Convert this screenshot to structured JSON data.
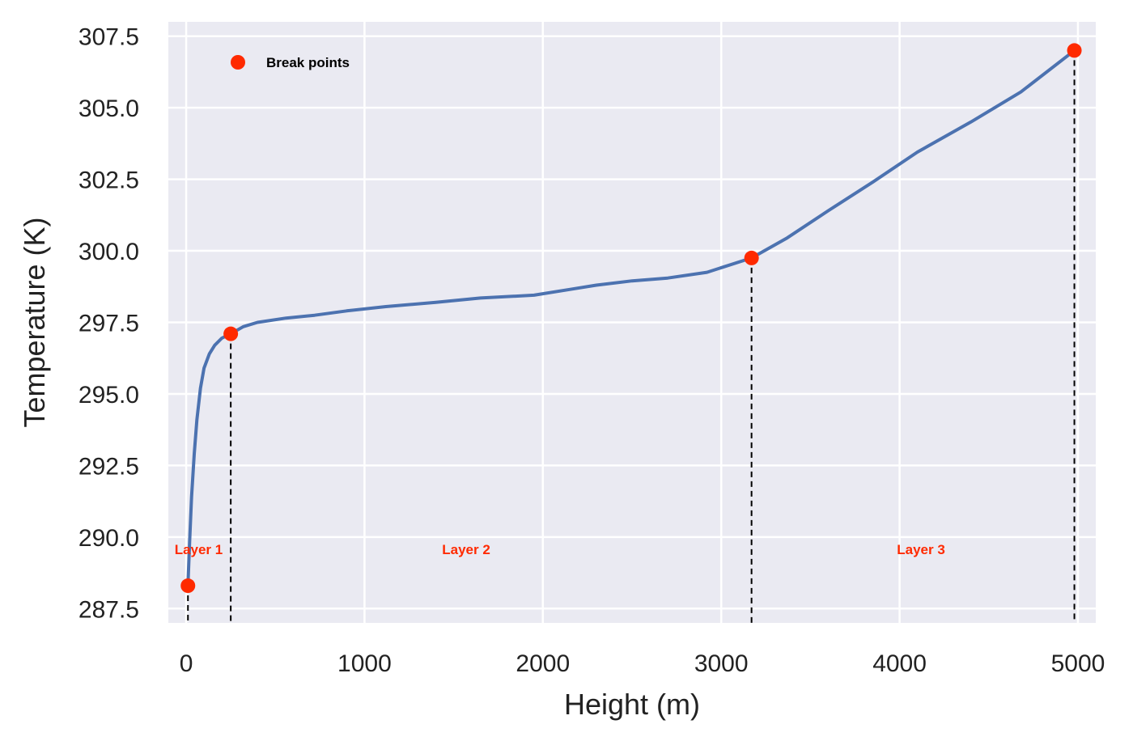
{
  "chart_data": {
    "type": "line",
    "title": "",
    "xlabel": "Height (m)",
    "ylabel": "Temperature (K)",
    "xlim": [
      -100,
      5100
    ],
    "ylim": [
      287.0,
      308.0
    ],
    "x_ticks": [
      0,
      1000,
      2000,
      3000,
      4000,
      5000
    ],
    "x_tick_labels": [
      "0",
      "1000",
      "2000",
      "3000",
      "4000",
      "5000"
    ],
    "y_ticks": [
      287.5,
      290.0,
      292.5,
      295.0,
      297.5,
      300.0,
      302.5,
      305.0,
      307.5
    ],
    "y_tick_labels": [
      "287.5",
      "290.0",
      "292.5",
      "295.0",
      "297.5",
      "300.0",
      "302.5",
      "305.0",
      "307.5"
    ],
    "grid": true,
    "background_color": "#eaeaf2",
    "grid_color": "#ffffff",
    "series": [
      {
        "color": "#4c72b0",
        "x": [
          10,
          20,
          30,
          45,
          60,
          80,
          100,
          130,
          160,
          200,
          250,
          320,
          400,
          560,
          720,
          900,
          1120,
          1400,
          1650,
          1950,
          2150,
          2300,
          2500,
          2700,
          2920,
          3170,
          3370,
          3600,
          3850,
          4100,
          4400,
          4680,
          4980
        ],
        "y": [
          288.3,
          289.9,
          291.4,
          292.9,
          294.1,
          295.2,
          295.9,
          296.4,
          296.7,
          296.95,
          297.1,
          297.35,
          297.5,
          297.65,
          297.75,
          297.9,
          298.05,
          298.2,
          298.35,
          298.45,
          298.65,
          298.8,
          298.95,
          299.05,
          299.25,
          299.75,
          300.45,
          301.4,
          302.4,
          303.45,
          304.5,
          305.55,
          307.0
        ]
      }
    ],
    "break_points": {
      "name": "Break points",
      "color": "#ff2a00",
      "x": [
        10,
        250,
        3170,
        4980
      ],
      "y": [
        288.3,
        297.1,
        299.75,
        307.0
      ],
      "vertical_lines_to": 287.0
    },
    "legend": {
      "position": "top-left",
      "entries": [
        "Break points"
      ]
    },
    "annotations": [
      {
        "text": "Layer 1",
        "x": 70,
        "y": 289.4,
        "color": "#ff2a00"
      },
      {
        "text": "Layer 2",
        "x": 1570,
        "y": 289.4,
        "color": "#ff2a00"
      },
      {
        "text": "Layer 3",
        "x": 4120,
        "y": 289.4,
        "color": "#ff2a00"
      }
    ]
  }
}
